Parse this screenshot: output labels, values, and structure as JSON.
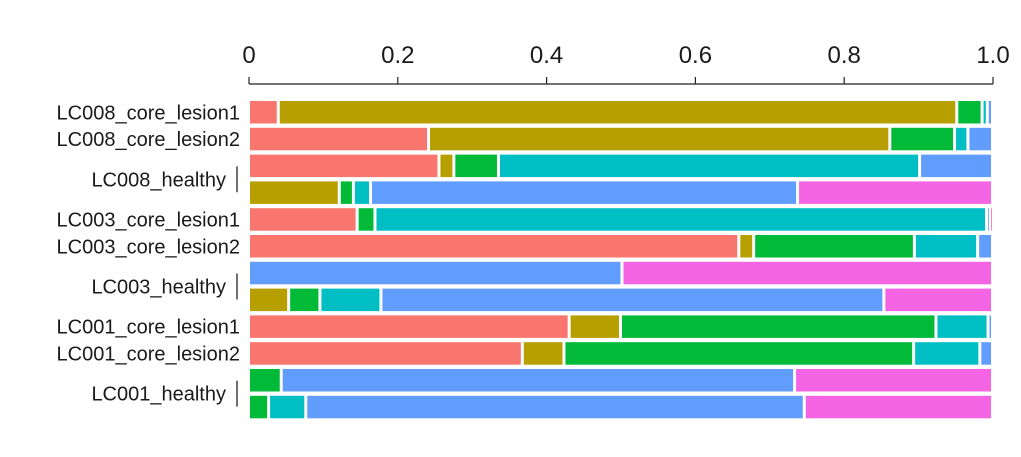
{
  "chart_data": {
    "type": "bar",
    "orientation": "horizontal",
    "stacked": true,
    "normalized": true,
    "title": "",
    "xlabel": "",
    "ylabel": "",
    "xlim": [
      0,
      1.0
    ],
    "x_ticks": [
      "0",
      "0.2",
      "0.4",
      "0.6",
      "0.8",
      "1.0"
    ],
    "x_axis_position": "top",
    "grid": false,
    "legend": "none",
    "colors": [
      "#F8766D",
      "#B79F00",
      "#00BA38",
      "#00BFC4",
      "#619CFF",
      "#F564E3"
    ],
    "labels": [
      {
        "text": "LC008_core_lesion1",
        "bars": [
          0
        ],
        "bracket": false
      },
      {
        "text": "LC008_core_lesion2",
        "bars": [
          1
        ],
        "bracket": false
      },
      {
        "text": "LC008_healthy",
        "bars": [
          2,
          3
        ],
        "bracket": true
      },
      {
        "text": "LC003_core_lesion1",
        "bars": [
          4
        ],
        "bracket": false
      },
      {
        "text": "LC003_core_lesion2",
        "bars": [
          5
        ],
        "bracket": false
      },
      {
        "text": "LC003_healthy",
        "bars": [
          6,
          7
        ],
        "bracket": true
      },
      {
        "text": "LC001_core_lesion1",
        "bars": [
          8
        ],
        "bracket": false
      },
      {
        "text": "LC001_core_lesion2",
        "bars": [
          9
        ],
        "bracket": false
      },
      {
        "text": "LC001_healthy",
        "bars": [
          10,
          11
        ],
        "bracket": true
      }
    ],
    "bars": [
      [
        0.04,
        0.912,
        0.034,
        0.007,
        0.007,
        0.0
      ],
      [
        0.242,
        0.62,
        0.087,
        0.018,
        0.033,
        0.0
      ],
      [
        0.256,
        0.02,
        0.06,
        0.566,
        0.098,
        0.0
      ],
      [
        0.0,
        0.122,
        0.019,
        0.023,
        0.574,
        0.262
      ],
      [
        0.146,
        0.0,
        0.024,
        0.822,
        0.004,
        0.004
      ],
      [
        0.659,
        0.02,
        0.216,
        0.085,
        0.02,
        0.0
      ],
      [
        0.0,
        0.0,
        0.0,
        0.0,
        0.502,
        0.498
      ],
      [
        0.0,
        0.054,
        0.042,
        0.082,
        0.676,
        0.146
      ],
      [
        0.431,
        0.069,
        0.424,
        0.07,
        0.006,
        0.0
      ],
      [
        0.368,
        0.056,
        0.47,
        0.089,
        0.017,
        0.0
      ],
      [
        0.0,
        0.0,
        0.044,
        0.0,
        0.69,
        0.266
      ],
      [
        0.0,
        0.0,
        0.027,
        0.05,
        0.67,
        0.253
      ]
    ]
  }
}
